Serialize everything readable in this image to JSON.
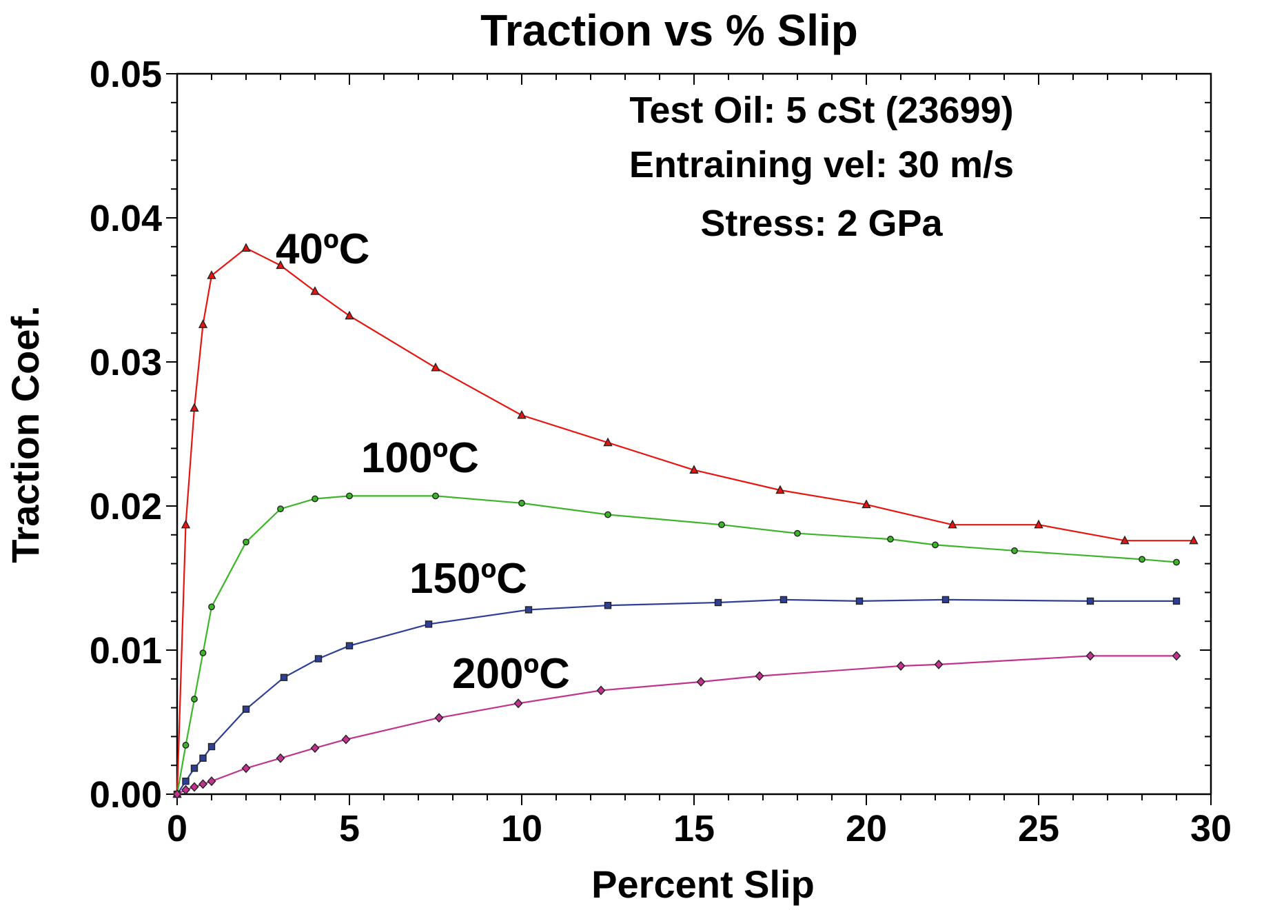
{
  "chart_data": {
    "type": "line",
    "title": "Traction vs % Slip",
    "xlabel": "Percent Slip",
    "ylabel": "Traction Coef.",
    "xlim": [
      0,
      30
    ],
    "ylim": [
      0,
      0.05
    ],
    "x_ticks": [
      "0",
      "5",
      "10",
      "15",
      "20",
      "25",
      "30"
    ],
    "y_ticks": [
      "0.00",
      "0.01",
      "0.02",
      "0.03",
      "0.04",
      "0.05"
    ],
    "grid": false,
    "annotations": [
      "Test Oil: 5 cSt (23699)",
      "Entraining vel: 30 m/s",
      "Stress: 2 GPa"
    ],
    "series": [
      {
        "name": "40ºC",
        "color": "#e8140f",
        "marker": "triangle",
        "x": [
          0,
          0.25,
          0.5,
          0.75,
          1,
          2,
          3,
          4,
          5,
          7.5,
          10,
          12.5,
          15,
          17.5,
          20,
          22.5,
          25,
          27.5,
          29.5
        ],
        "y": [
          0,
          0.0187,
          0.0268,
          0.0326,
          0.036,
          0.0379,
          0.0367,
          0.0349,
          0.0332,
          0.0296,
          0.0263,
          0.0244,
          0.0225,
          0.0211,
          0.0201,
          0.0187,
          0.0187,
          0.0176,
          0.0176
        ]
      },
      {
        "name": "100ºC",
        "color": "#3cb528",
        "marker": "circle",
        "x": [
          0,
          0.25,
          0.5,
          0.75,
          1,
          2,
          3,
          4,
          5,
          7.5,
          10,
          12.5,
          15.8,
          18,
          20.7,
          22,
          24.3,
          28,
          29
        ],
        "y": [
          0,
          0.0034,
          0.0066,
          0.0098,
          0.013,
          0.0175,
          0.0198,
          0.0205,
          0.0207,
          0.0207,
          0.0202,
          0.0194,
          0.0187,
          0.0181,
          0.0177,
          0.0173,
          0.0169,
          0.0163,
          0.0161
        ]
      },
      {
        "name": "150ºC",
        "color": "#2f3f96",
        "marker": "square",
        "x": [
          0,
          0.25,
          0.5,
          0.75,
          1,
          2,
          3.1,
          4.1,
          5,
          7.3,
          10.2,
          12.5,
          15.7,
          17.6,
          19.8,
          22.3,
          26.5,
          29
        ],
        "y": [
          0,
          0.0009,
          0.0018,
          0.0025,
          0.0033,
          0.0059,
          0.0081,
          0.0094,
          0.0103,
          0.0118,
          0.0128,
          0.0131,
          0.0133,
          0.0135,
          0.0134,
          0.0135,
          0.0134,
          0.0134
        ]
      },
      {
        "name": "200ºC",
        "color": "#c2328f",
        "marker": "diamond",
        "x": [
          0,
          0.25,
          0.5,
          0.75,
          1,
          2,
          3,
          4,
          4.9,
          7.6,
          9.9,
          12.3,
          15.2,
          16.9,
          21,
          22.1,
          26.5,
          29
        ],
        "y": [
          0,
          0.0003,
          0.0005,
          0.0007,
          0.0009,
          0.0018,
          0.0025,
          0.0032,
          0.0038,
          0.0053,
          0.0063,
          0.0072,
          0.0078,
          0.0082,
          0.0089,
          0.009,
          0.0096,
          0.0096
        ]
      }
    ]
  }
}
